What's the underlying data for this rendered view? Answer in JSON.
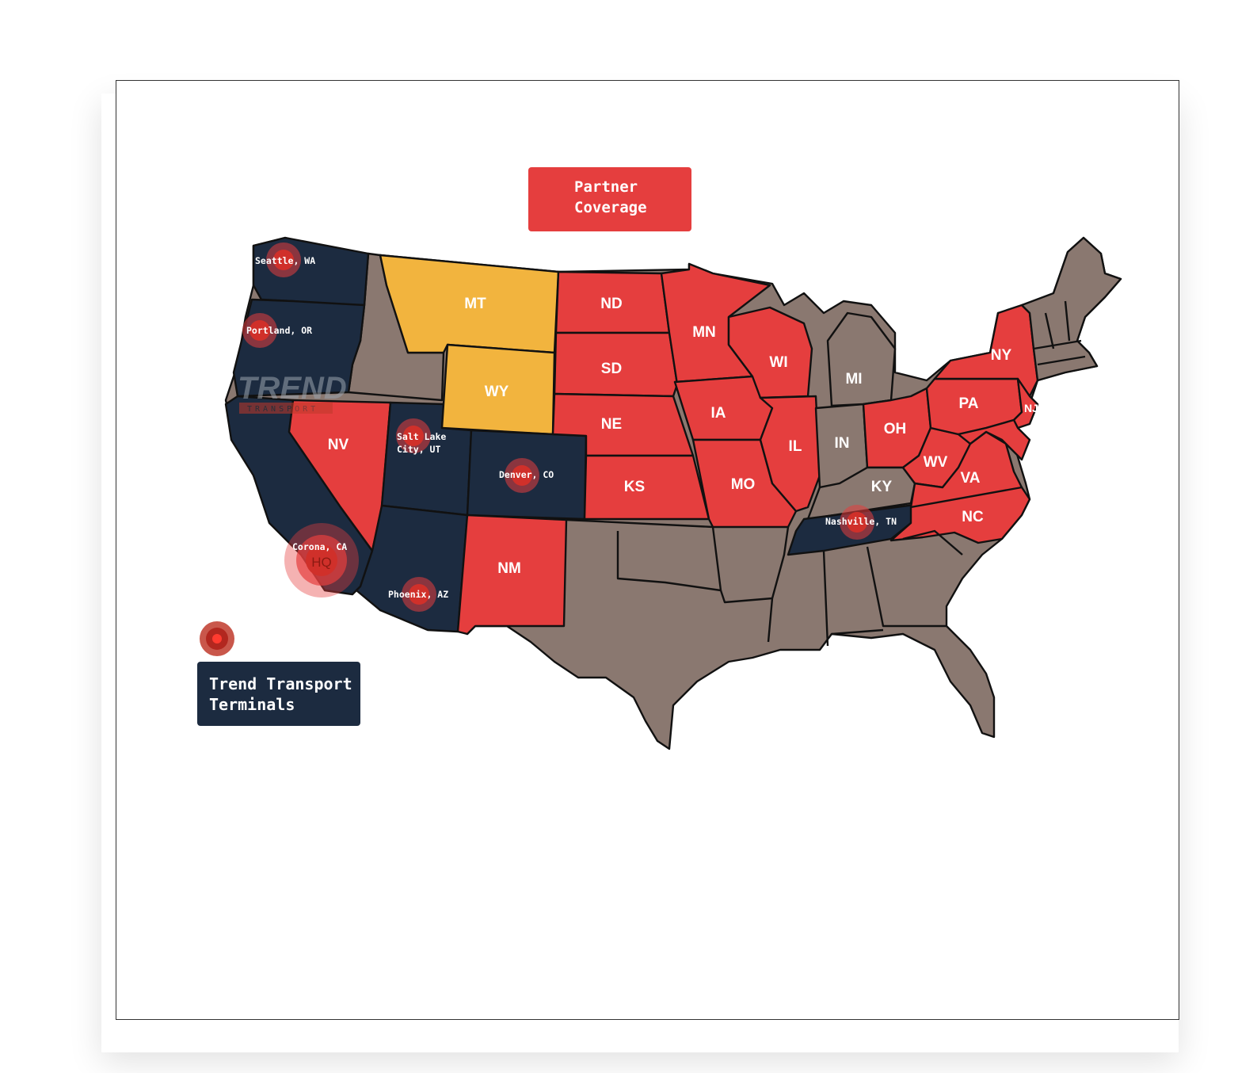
{
  "legend": {
    "partner_line1": "Partner",
    "partner_line2": "Coverage",
    "terminals_line1": "Trend Transport",
    "terminals_line2": "Terminals"
  },
  "logo": {
    "word": "TREND",
    "sub": "TRANSPORT"
  },
  "colors": {
    "partner": "#e53e3e",
    "terminal": "#1c2b40",
    "gold": "#f2b43e",
    "other": "#8a7870"
  },
  "states": {
    "MT": "MT",
    "WY": "WY",
    "ND": "ND",
    "SD": "SD",
    "NE": "NE",
    "KS": "KS",
    "MN": "MN",
    "IA": "IA",
    "MO": "MO",
    "WI": "WI",
    "IL": "IL",
    "IN": "IN",
    "MI": "MI",
    "OH": "OH",
    "KY": "KY",
    "WV": "WV",
    "VA": "VA",
    "NC": "NC",
    "PA": "PA",
    "NY": "NY",
    "NJ": "NJ",
    "NV": "NV",
    "NM": "NM"
  },
  "terminals": {
    "seattle": "Seattle, WA",
    "portland": "Portland, OR",
    "slc_1": "Salt Lake",
    "slc_2": "City, UT",
    "denver": "Denver, CO",
    "corona": "Corona, CA",
    "hq": "HQ",
    "phoenix": "Phoenix, AZ",
    "nashville": "Nashville, TN"
  }
}
